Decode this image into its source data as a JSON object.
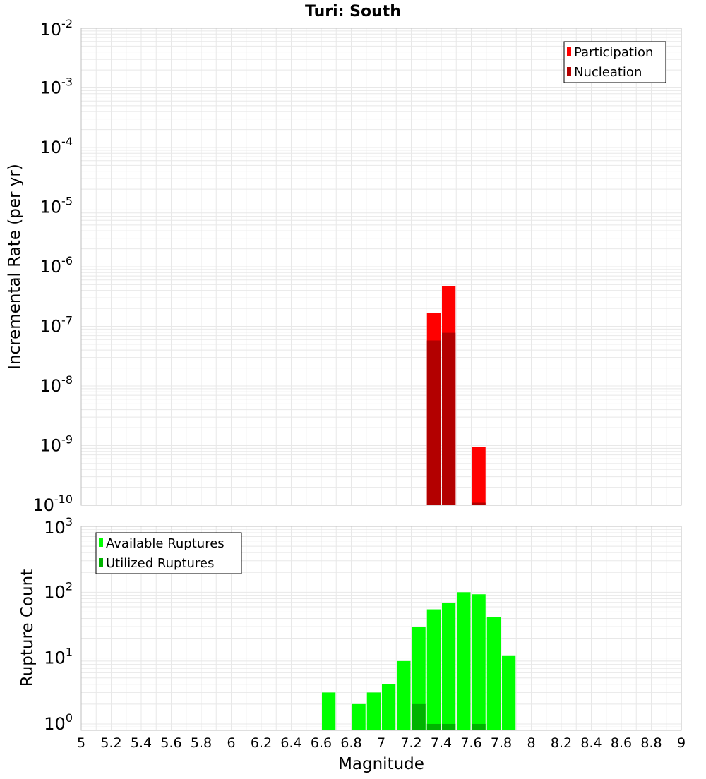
{
  "title": "Turi: South",
  "colors": {
    "participation": "#ff0000",
    "nucleation": "#b30000",
    "available": "#00ff00",
    "utilized": "#00b300",
    "grid": "#e8e8e8",
    "frame": "#bfbfbf"
  },
  "x_axis": {
    "label": "Magnitude",
    "range": [
      5,
      9
    ],
    "ticks": [
      "5",
      "5.2",
      "5.4",
      "5.6",
      "5.8",
      "6",
      "6.2",
      "6.4",
      "6.6",
      "6.8",
      "7",
      "7.2",
      "7.4",
      "7.6",
      "7.8",
      "8",
      "8.2",
      "8.4",
      "8.6",
      "8.8",
      "9"
    ]
  },
  "chart_data": [
    {
      "type": "bar",
      "title": "Turi: South",
      "xlabel": "",
      "ylabel": "Incremental Rate (per yr)",
      "yscale": "log",
      "ylim": [
        1e-10,
        0.01
      ],
      "y_ticks": [
        {
          "base": "10",
          "exp": "-2"
        },
        {
          "base": "10",
          "exp": "-3"
        },
        {
          "base": "10",
          "exp": "-4"
        },
        {
          "base": "10",
          "exp": "-5"
        },
        {
          "base": "10",
          "exp": "-6"
        },
        {
          "base": "10",
          "exp": "-7"
        },
        {
          "base": "10",
          "exp": "-8"
        },
        {
          "base": "10",
          "exp": "-9"
        },
        {
          "base": "10",
          "exp": "-10"
        }
      ],
      "bin_width": 0.1,
      "legend_position": "top-right",
      "series": [
        {
          "name": "Participation",
          "x": [
            7.35,
            7.45,
            7.65
          ],
          "values": [
            1.7e-07,
            4.7e-07,
            9.5e-10
          ]
        },
        {
          "name": "Nucleation",
          "x": [
            7.35,
            7.45,
            7.65
          ],
          "values": [
            5.8e-08,
            7.8e-08,
            1.1e-10
          ]
        }
      ]
    },
    {
      "type": "bar",
      "xlabel": "Magnitude",
      "ylabel": "Rupture Count",
      "yscale": "log",
      "ylim": [
        0.8,
        1000
      ],
      "y_ticks": [
        {
          "base": "10",
          "exp": "3"
        },
        {
          "base": "10",
          "exp": "2"
        },
        {
          "base": "10",
          "exp": "1"
        },
        {
          "base": "10",
          "exp": "0"
        }
      ],
      "bin_width": 0.1,
      "legend_position": "top-left",
      "series": [
        {
          "name": "Available Ruptures",
          "x": [
            6.65,
            6.85,
            6.95,
            7.05,
            7.15,
            7.25,
            7.35,
            7.45,
            7.55,
            7.65,
            7.75,
            7.85
          ],
          "values": [
            3,
            2,
            3,
            4,
            9,
            30,
            55,
            68,
            100,
            93,
            42,
            11
          ]
        },
        {
          "name": "Utilized Ruptures",
          "x": [
            7.25,
            7.35,
            7.45,
            7.65
          ],
          "values": [
            2,
            1,
            1,
            1
          ]
        }
      ]
    }
  ]
}
